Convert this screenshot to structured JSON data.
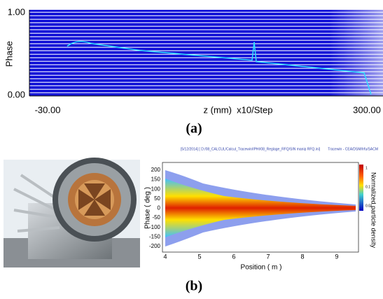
{
  "panel_a": {
    "y_axis_label": "Phase",
    "y_top": "1.00",
    "y_bottom": "0.00",
    "x_left": "-30.00",
    "x_axis_label": "z (mm)  x10/Step",
    "x_right": "300.00",
    "caption": "(a)"
  },
  "panel_b": {
    "plot_header_left": "[5/12/2014] [ D:/08_CALCUL/Calcul_Tracewin/IPHI/08_Reglage_RFQ/SIN manip RFQ.ini]",
    "plot_header_right": "Tracewin - CEA/DSM/Irfu/SACM",
    "y_axis_label": "Phase ( deg )",
    "yticks": [
      "200",
      "150",
      "100",
      "50",
      "0",
      "-50",
      "-100",
      "-150",
      "-200"
    ],
    "xticks": [
      "4",
      "5",
      "6",
      "7",
      "8",
      "9"
    ],
    "x_axis_label": "Position ( m )",
    "colorbar_label": "Normalized particle density",
    "colorbar_ticks": [
      "1",
      "0.1",
      "0.01"
    ],
    "caption": "(b)"
  }
}
